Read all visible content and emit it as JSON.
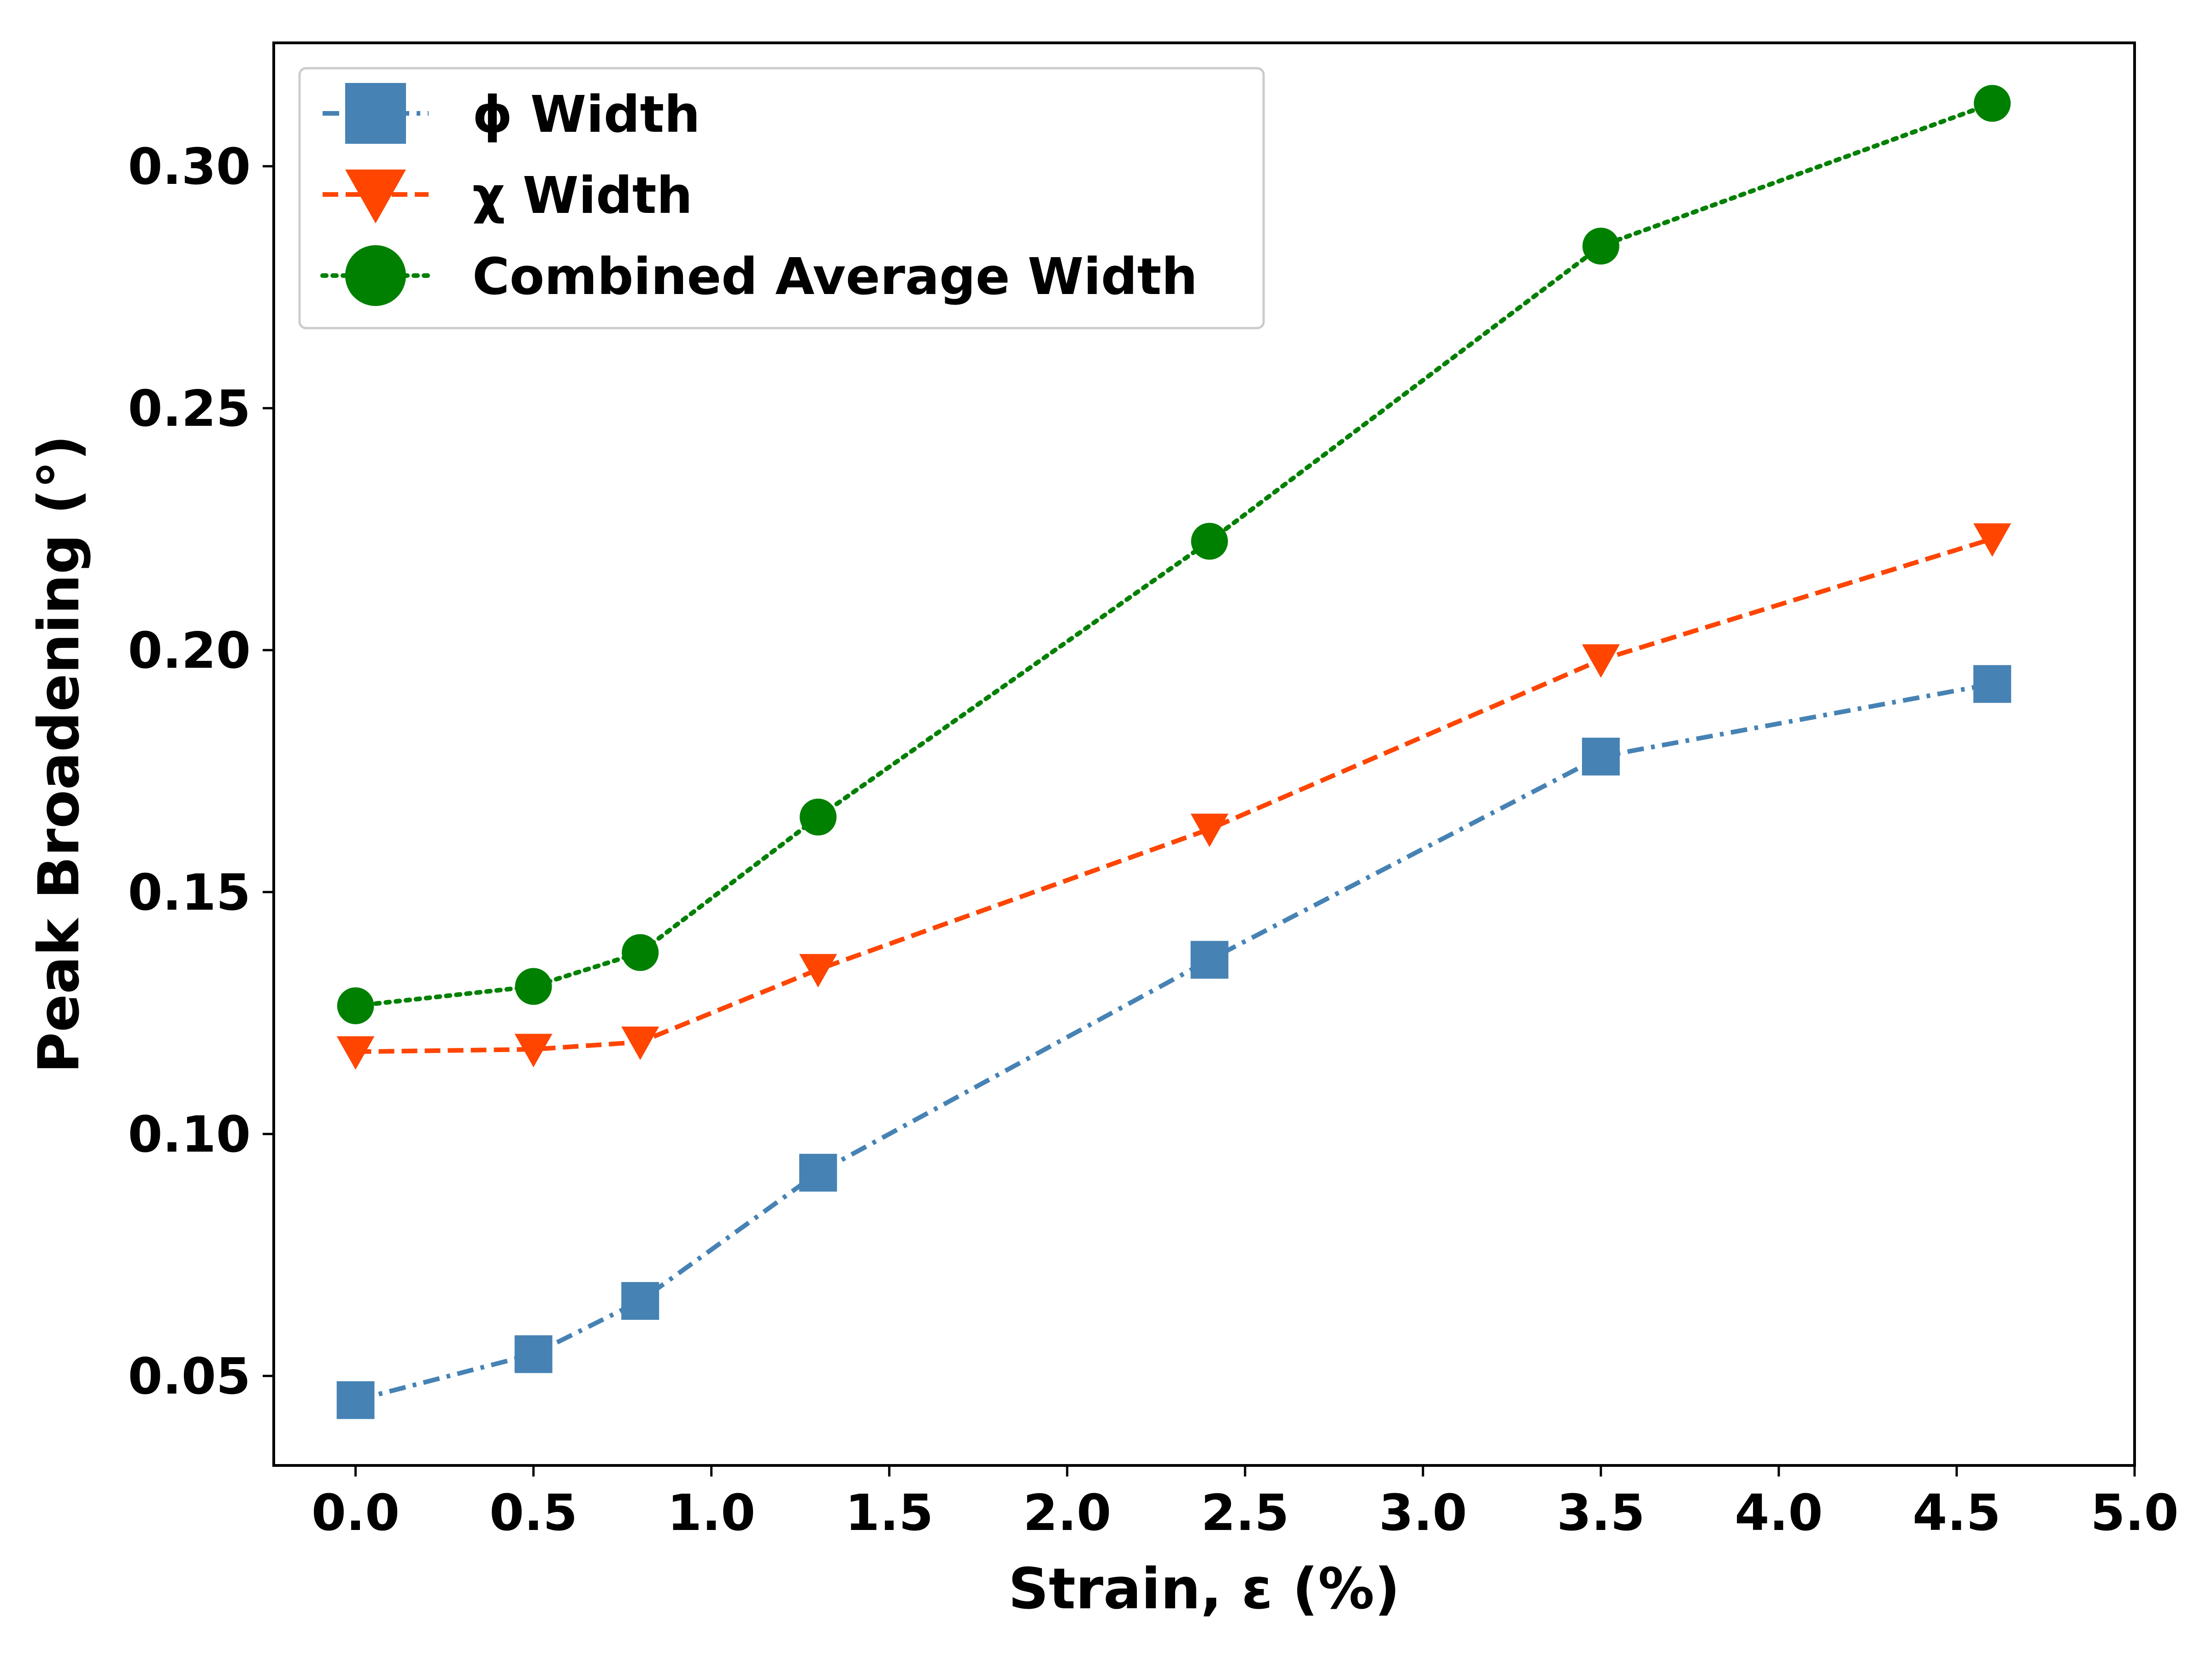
{
  "chart_data": {
    "type": "line",
    "title": "",
    "xlabel": "Strain, ε (%)",
    "ylabel": "Peak Broadening (°)",
    "xlim": [
      -0.23,
      5.0
    ],
    "ylim": [
      0.0315,
      0.3255
    ],
    "xticks": [
      0.0,
      0.5,
      1.0,
      1.5,
      2.0,
      2.5,
      3.0,
      3.5,
      4.0,
      4.5,
      5.0
    ],
    "xtick_labels": [
      "0.0",
      "0.5",
      "1.0",
      "1.5",
      "2.0",
      "2.5",
      "3.0",
      "3.5",
      "4.0",
      "4.5",
      "5.0"
    ],
    "yticks": [
      0.05,
      0.1,
      0.15,
      0.2,
      0.25,
      0.3
    ],
    "ytick_labels": [
      "0.05",
      "0.10",
      "0.15",
      "0.20",
      "0.25",
      "0.30"
    ],
    "legend_position": "top-left",
    "grid": false,
    "x": [
      0.0,
      0.5,
      0.8,
      1.3,
      2.4,
      3.5,
      4.6
    ],
    "series": [
      {
        "name": "ϕ Width",
        "values": [
          0.045,
          0.0545,
          0.0655,
          0.092,
          0.136,
          0.178,
          0.193
        ],
        "color": "#4682b4",
        "marker": "square",
        "linestyle": "dashdot"
      },
      {
        "name": "χ Width",
        "values": [
          0.117,
          0.1175,
          0.119,
          0.134,
          0.163,
          0.198,
          0.223
        ],
        "color": "#ff4500",
        "marker": "triangle-down",
        "linestyle": "dashed"
      },
      {
        "name": "Combined Average Width",
        "values": [
          0.1265,
          0.1305,
          0.1375,
          0.1655,
          0.2225,
          0.2835,
          0.313
        ],
        "color": "#008000",
        "marker": "circle",
        "linestyle": "dotted"
      }
    ]
  }
}
